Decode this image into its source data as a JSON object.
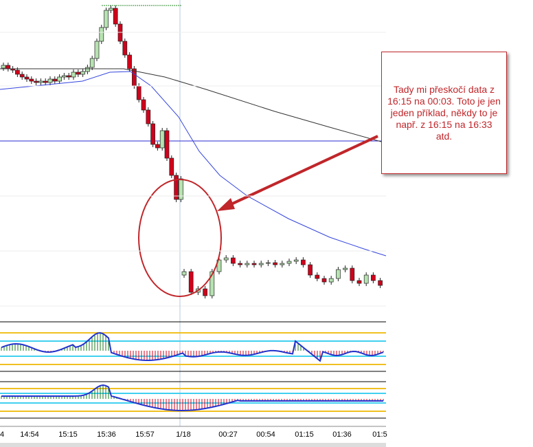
{
  "annotation": {
    "text": "Tady mi přeskočí data z 16:15 na 00:03. Toto je jen jeden příklad, někdy to je např. z 16:15 na 16:33 atd."
  },
  "x_axis": {
    "labels": [
      "4",
      "14:54",
      "15:15",
      "15:36",
      "15:57",
      "1/18",
      "00:27",
      "00:54",
      "01:15",
      "01:36",
      "01:5"
    ]
  }
}
